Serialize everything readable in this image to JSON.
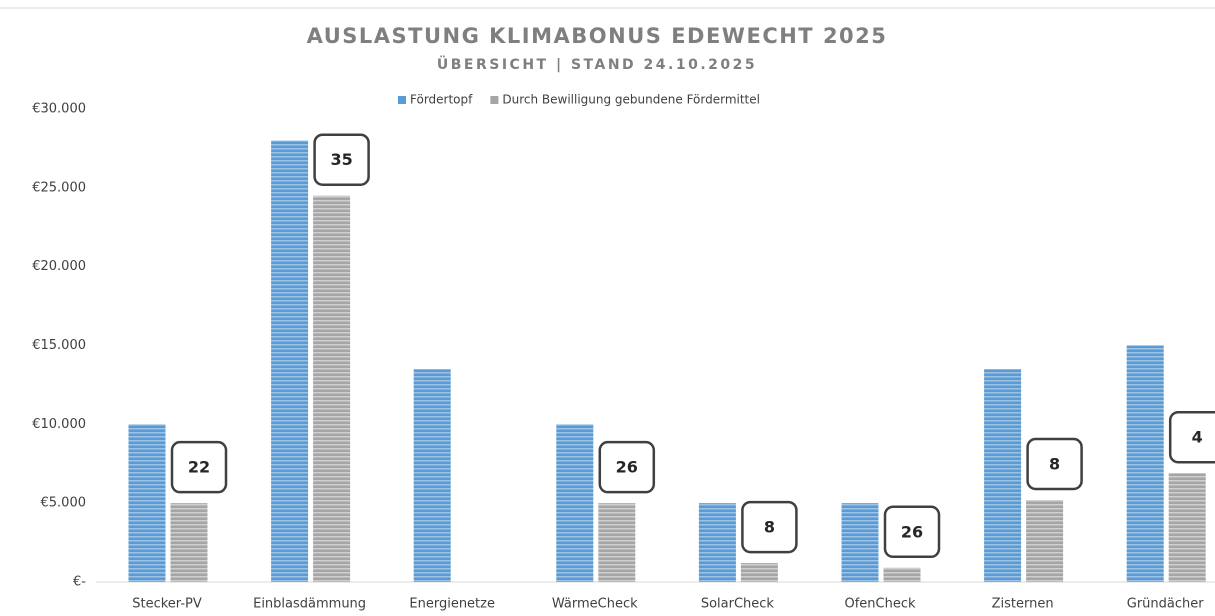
{
  "chart_data": {
    "type": "bar",
    "title": "AUSLASTUNG KLIMABONUS EDEWECHT 2025",
    "subtitle": "ÜBERSICHT | STAND 24.10.2025",
    "categories": [
      "Stecker-PV",
      "Einblasdämmung",
      "Energienetze",
      "WärmeCheck",
      "SolarCheck",
      "OfenCheck",
      "Zisternen",
      "Gründächer"
    ],
    "series": [
      {
        "name": "Fördertopf",
        "color": "#5b9bd5",
        "values": [
          10000,
          28000,
          13500,
          10000,
          5000,
          5000,
          13500,
          15000
        ]
      },
      {
        "name": "Durch Bewilligung gebundene Fördermittel",
        "color": "#a5a5a5",
        "values": [
          5000,
          24500,
          0,
          5000,
          1200,
          900,
          5200,
          6900
        ]
      }
    ],
    "annotations": [
      22,
      35,
      null,
      26,
      8,
      26,
      8,
      4
    ],
    "ylim": [
      0,
      30000
    ],
    "yticks": [
      {
        "value": 0,
        "label": "€-"
      },
      {
        "value": 5000,
        "label": "€5.000"
      },
      {
        "value": 10000,
        "label": "€10.000"
      },
      {
        "value": 15000,
        "label": "€15.000"
      },
      {
        "value": 20000,
        "label": "€20.000"
      },
      {
        "value": 25000,
        "label": "€25.000"
      },
      {
        "value": 30000,
        "label": "€30.000"
      }
    ],
    "grid": false,
    "legend": "top"
  }
}
